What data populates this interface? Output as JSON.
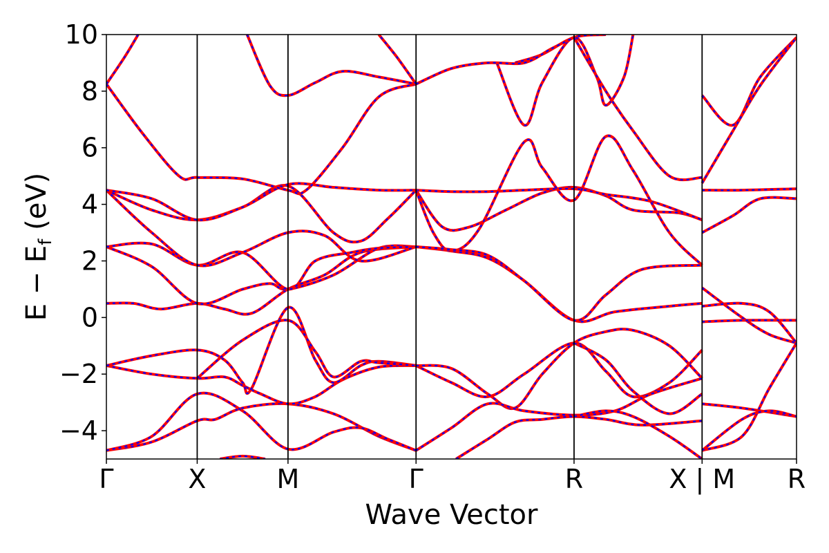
{
  "chart_data": {
    "type": "line",
    "title": "",
    "xlabel": "Wave Vector",
    "ylabel": "E − E_f (eV)",
    "ylabel_main": "E − E",
    "ylabel_sub": "f",
    "ylabel_tail": " (eV)",
    "ylim": [
      -5,
      10
    ],
    "yticks": [
      -4,
      -2,
      0,
      2,
      4,
      6,
      8,
      10
    ],
    "xlim": [
      0,
      7.6
    ],
    "kpoints": [
      {
        "label": "Γ",
        "x": 0
      },
      {
        "label": "X",
        "x": 1.0
      },
      {
        "label": "M",
        "x": 2.0
      },
      {
        "label": "Γ",
        "x": 3.41
      },
      {
        "label": "R",
        "x": 5.15
      },
      {
        "label": "X | M",
        "x": 6.56
      },
      {
        "label": "R",
        "x": 7.6
      }
    ],
    "segment_break_x": 6.56,
    "grid": false,
    "series_styles": {
      "solid_color": "#ff0000",
      "dashed_color": "#0000ff"
    },
    "bands": [
      [
        [
          0,
          -4.7
        ],
        [
          0.5,
          -4.4
        ],
        [
          1.0,
          -3.65
        ],
        [
          1.2,
          -3.6
        ],
        [
          1.5,
          -3.2
        ],
        [
          2.0,
          -3.05
        ],
        [
          2.5,
          -3.4
        ],
        [
          3.0,
          -4.2
        ],
        [
          3.41,
          -4.7
        ]
      ],
      [
        [
          0,
          -4.7
        ],
        [
          0.5,
          -4.2
        ],
        [
          1.0,
          -2.7
        ],
        [
          1.5,
          -3.3
        ],
        [
          2.0,
          -4.65
        ],
        [
          2.5,
          -4.05
        ],
        [
          2.8,
          -3.9
        ],
        [
          3.1,
          -4.3
        ],
        [
          3.41,
          -4.7
        ]
      ],
      [
        [
          0,
          -1.7
        ],
        [
          0.5,
          -2.0
        ],
        [
          1.0,
          -2.15
        ],
        [
          1.3,
          -2.1
        ],
        [
          1.5,
          -2.4
        ],
        [
          1.7,
          -2.7
        ],
        [
          2.0,
          -3.05
        ],
        [
          2.3,
          -2.8
        ],
        [
          2.6,
          -2.2
        ],
        [
          3.0,
          -1.75
        ],
        [
          3.41,
          -1.7
        ]
      ],
      [
        [
          0,
          -1.7
        ],
        [
          0.5,
          -1.35
        ],
        [
          1.0,
          -1.15
        ],
        [
          1.3,
          -1.5
        ],
        [
          1.5,
          -2.3
        ],
        [
          1.6,
          -2.5
        ],
        [
          2.0,
          0.35
        ],
        [
          2.3,
          -1.5
        ],
        [
          2.5,
          -2.3
        ],
        [
          2.8,
          -1.7
        ],
        [
          3.0,
          -1.55
        ],
        [
          3.41,
          -1.7
        ]
      ],
      [
        [
          1.0,
          -2.15
        ],
        [
          1.5,
          -0.8
        ],
        [
          2.0,
          -0.1
        ],
        [
          2.3,
          -1.2
        ],
        [
          2.5,
          -2.1
        ],
        [
          2.8,
          -1.55
        ],
        [
          3.0,
          -1.6
        ],
        [
          3.41,
          -1.7
        ]
      ],
      [
        [
          0,
          0.5
        ],
        [
          0.3,
          0.5
        ],
        [
          0.6,
          0.3
        ],
        [
          1.0,
          0.5
        ],
        [
          1.3,
          0.3
        ],
        [
          1.6,
          0.15
        ],
        [
          2.0,
          1.0
        ],
        [
          2.4,
          1.5
        ],
        [
          2.8,
          2.3
        ],
        [
          3.41,
          2.5
        ]
      ],
      [
        [
          0,
          2.5
        ],
        [
          0.5,
          1.8
        ],
        [
          1.0,
          0.5
        ],
        [
          1.5,
          1.0
        ],
        [
          1.8,
          1.2
        ],
        [
          2.0,
          1.0
        ],
        [
          2.5,
          1.5
        ],
        [
          3.0,
          2.45
        ],
        [
          3.41,
          2.5
        ]
      ],
      [
        [
          0,
          2.5
        ],
        [
          0.5,
          2.6
        ],
        [
          1.0,
          1.85
        ],
        [
          1.5,
          2.3
        ],
        [
          2.0,
          1.0
        ],
        [
          2.3,
          2.0
        ],
        [
          2.7,
          2.3
        ],
        [
          3.0,
          2.45
        ],
        [
          3.41,
          2.5
        ]
      ],
      [
        [
          0,
          4.5
        ],
        [
          0.5,
          3.0
        ],
        [
          1.0,
          1.85
        ],
        [
          1.5,
          2.3
        ],
        [
          2.0,
          3.0
        ],
        [
          2.4,
          2.9
        ],
        [
          2.8,
          2.0
        ],
        [
          3.41,
          2.5
        ]
      ],
      [
        [
          0,
          4.5
        ],
        [
          0.5,
          3.8
        ],
        [
          1.0,
          3.45
        ],
        [
          1.5,
          3.9
        ],
        [
          2.0,
          4.65
        ],
        [
          2.5,
          3.0
        ],
        [
          2.8,
          2.7
        ],
        [
          3.1,
          3.5
        ],
        [
          3.41,
          4.5
        ]
      ],
      [
        [
          0,
          4.5
        ],
        [
          0.5,
          4.2
        ],
        [
          1.0,
          3.45
        ],
        [
          1.5,
          3.9
        ],
        [
          2.0,
          4.7
        ],
        [
          2.5,
          4.6
        ],
        [
          3.0,
          4.5
        ],
        [
          3.41,
          4.5
        ]
      ],
      [
        [
          0,
          8.25
        ],
        [
          0.4,
          6.5
        ],
        [
          0.8,
          5.0
        ],
        [
          1.0,
          4.95
        ],
        [
          1.5,
          4.9
        ],
        [
          2.0,
          4.5
        ],
        [
          2.2,
          4.5
        ],
        [
          2.6,
          6.0
        ],
        [
          3.0,
          7.8
        ],
        [
          3.41,
          8.25
        ]
      ],
      [
        [
          0,
          8.25
        ],
        [
          0.2,
          9.2
        ],
        [
          0.35,
          10.0
        ]
      ],
      [
        [
          1.55,
          10.0
        ],
        [
          1.8,
          8.2
        ],
        [
          2.0,
          7.85
        ],
        [
          2.3,
          8.3
        ],
        [
          2.6,
          8.7
        ],
        [
          3.0,
          8.5
        ],
        [
          3.41,
          8.25
        ]
      ],
      [
        [
          3.41,
          8.25
        ],
        [
          3.2,
          9.2
        ],
        [
          3.0,
          10.0
        ]
      ],
      [
        [
          3.41,
          4.5
        ],
        [
          3.7,
          3.2
        ],
        [
          4.0,
          3.2
        ],
        [
          4.4,
          3.8
        ],
        [
          4.8,
          4.4
        ],
        [
          5.15,
          4.6
        ],
        [
          5.5,
          4.3
        ],
        [
          5.8,
          3.8
        ],
        [
          6.3,
          3.7
        ],
        [
          6.56,
          3.45
        ]
      ],
      [
        [
          3.41,
          4.5
        ],
        [
          3.8,
          4.45
        ],
        [
          4.2,
          4.45
        ],
        [
          4.6,
          4.5
        ],
        [
          5.15,
          4.55
        ],
        [
          5.5,
          4.35
        ],
        [
          6.0,
          4.1
        ],
        [
          6.56,
          3.45
        ]
      ],
      [
        [
          3.41,
          4.5
        ],
        [
          3.6,
          3.0
        ],
        [
          3.8,
          2.35
        ],
        [
          4.1,
          3.1
        ],
        [
          4.6,
          6.2
        ],
        [
          4.8,
          5.3
        ],
        [
          5.15,
          4.15
        ],
        [
          5.5,
          6.4
        ],
        [
          5.8,
          5.2
        ],
        [
          6.2,
          3.0
        ],
        [
          6.56,
          1.85
        ]
      ],
      [
        [
          3.41,
          2.5
        ],
        [
          3.8,
          2.35
        ],
        [
          4.2,
          2.1
        ],
        [
          4.6,
          1.3
        ],
        [
          5.15,
          -0.1
        ],
        [
          5.6,
          0.2
        ],
        [
          6.2,
          0.4
        ],
        [
          6.56,
          0.5
        ]
      ],
      [
        [
          3.41,
          2.5
        ],
        [
          3.8,
          2.4
        ],
        [
          4.2,
          2.2
        ],
        [
          4.6,
          1.3
        ],
        [
          5.15,
          -0.1
        ],
        [
          5.5,
          0.8
        ],
        [
          5.9,
          1.7
        ],
        [
          6.56,
          1.85
        ]
      ],
      [
        [
          3.41,
          -1.7
        ],
        [
          3.8,
          -2.3
        ],
        [
          4.2,
          -2.8
        ],
        [
          4.6,
          -2.0
        ],
        [
          5.15,
          -0.9
        ],
        [
          5.5,
          -1.9
        ],
        [
          5.8,
          -2.8
        ],
        [
          6.2,
          -2.3
        ],
        [
          6.56,
          -1.15
        ]
      ],
      [
        [
          3.41,
          -1.7
        ],
        [
          3.8,
          -1.8
        ],
        [
          4.2,
          -2.7
        ],
        [
          4.5,
          -3.2
        ],
        [
          4.8,
          -2.0
        ],
        [
          5.15,
          -0.9
        ],
        [
          5.5,
          -0.5
        ],
        [
          5.8,
          -0.45
        ],
        [
          6.2,
          -1.0
        ],
        [
          6.56,
          -2.15
        ]
      ],
      [
        [
          3.41,
          -4.7
        ],
        [
          3.8,
          -3.9
        ],
        [
          4.2,
          -3.05
        ],
        [
          4.6,
          -3.3
        ],
        [
          5.15,
          -3.45
        ],
        [
          5.6,
          -3.3
        ],
        [
          6.0,
          -2.7
        ],
        [
          6.56,
          -2.15
        ]
      ],
      [
        [
          3.85,
          -5.0
        ],
        [
          4.2,
          -4.3
        ],
        [
          4.5,
          -3.7
        ],
        [
          4.8,
          -3.6
        ],
        [
          5.15,
          -3.5
        ],
        [
          5.5,
          -3.6
        ],
        [
          5.9,
          -3.8
        ],
        [
          6.56,
          -3.65
        ]
      ],
      [
        [
          5.15,
          -0.9
        ],
        [
          5.5,
          -1.5
        ],
        [
          5.8,
          -2.6
        ],
        [
          6.2,
          -3.4
        ],
        [
          6.56,
          -2.7
        ]
      ],
      [
        [
          5.15,
          -3.5
        ],
        [
          5.5,
          -3.3
        ],
        [
          5.8,
          -3.5
        ],
        [
          6.2,
          -4.2
        ],
        [
          6.56,
          -5.0
        ]
      ],
      [
        [
          4.5,
          9.0
        ],
        [
          4.8,
          9.3
        ],
        [
          5.15,
          9.9
        ],
        [
          5.5,
          10.0
        ]
      ],
      [
        [
          4.3,
          9.0
        ],
        [
          4.6,
          6.8
        ],
        [
          4.8,
          8.3
        ],
        [
          5.15,
          9.9
        ],
        [
          5.4,
          8.5
        ],
        [
          5.5,
          7.5
        ],
        [
          5.7,
          8.5
        ],
        [
          5.8,
          10.0
        ]
      ],
      [
        [
          5.15,
          9.9
        ],
        [
          5.5,
          8.0
        ],
        [
          5.8,
          6.6
        ],
        [
          6.2,
          5.0
        ],
        [
          6.56,
          4.95
        ]
      ],
      [
        [
          3.41,
          8.25
        ],
        [
          3.8,
          8.8
        ],
        [
          4.2,
          9.0
        ],
        [
          4.6,
          9.0
        ],
        [
          4.9,
          9.5
        ],
        [
          5.15,
          9.9
        ]
      ],
      [
        [
          6.56,
          7.85
        ],
        [
          6.9,
          6.8
        ],
        [
          7.2,
          8.5
        ],
        [
          7.6,
          9.9
        ]
      ],
      [
        [
          6.56,
          4.75
        ],
        [
          6.9,
          6.6
        ],
        [
          7.2,
          8.2
        ],
        [
          7.6,
          9.9
        ]
      ],
      [
        [
          6.56,
          4.5
        ],
        [
          7.0,
          4.5
        ],
        [
          7.6,
          4.55
        ]
      ],
      [
        [
          6.56,
          3.0
        ],
        [
          6.9,
          3.6
        ],
        [
          7.2,
          4.2
        ],
        [
          7.6,
          4.2
        ]
      ],
      [
        [
          6.56,
          1.05
        ],
        [
          7.0,
          0.0
        ],
        [
          7.3,
          -0.6
        ],
        [
          7.6,
          -0.9
        ]
      ],
      [
        [
          6.56,
          0.4
        ],
        [
          7.0,
          0.5
        ],
        [
          7.3,
          0.2
        ],
        [
          7.6,
          -0.9
        ]
      ],
      [
        [
          6.56,
          -0.15
        ],
        [
          7.0,
          -0.1
        ],
        [
          7.6,
          -0.1
        ]
      ],
      [
        [
          6.56,
          -3.05
        ],
        [
          7.0,
          -3.2
        ],
        [
          7.6,
          -3.5
        ]
      ],
      [
        [
          6.56,
          -4.7
        ],
        [
          7.0,
          -4.2
        ],
        [
          7.3,
          -2.5
        ],
        [
          7.6,
          -0.9
        ]
      ],
      [
        [
          6.56,
          -4.7
        ],
        [
          7.0,
          -3.6
        ],
        [
          7.3,
          -3.3
        ],
        [
          7.6,
          -3.5
        ]
      ],
      [
        [
          1.25,
          -5.0
        ],
        [
          1.5,
          -4.9
        ],
        [
          1.75,
          -5.0
        ]
      ]
    ]
  }
}
